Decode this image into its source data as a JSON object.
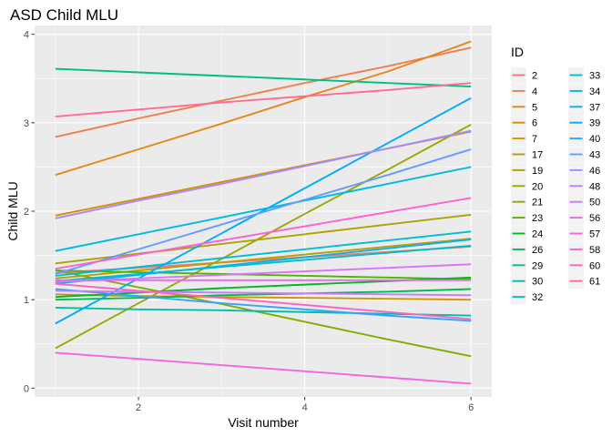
{
  "chart_data": {
    "type": "line",
    "title": "ASD Child MLU",
    "xlabel": "Visit number",
    "ylabel": "Child MLU",
    "xlim": [
      0.75,
      6.25
    ],
    "ylim": [
      -0.1,
      4.1
    ],
    "x_ticks": [
      2,
      4,
      6
    ],
    "y_ticks": [
      0,
      1,
      2,
      3,
      4
    ],
    "grid": true,
    "legend_title": "ID",
    "legend_placement": "right",
    "x": [
      1,
      2,
      3,
      4,
      5,
      6
    ],
    "series": [
      {
        "name": "2",
        "color": "#F8766D",
        "values": [
          1.3,
          1.36,
          1.42,
          1.48,
          1.54,
          1.6
        ]
      },
      {
        "name": "4",
        "color": "#F07F4F",
        "values": [
          2.84,
          3.05,
          3.25,
          3.45,
          3.64,
          3.85
        ]
      },
      {
        "name": "5",
        "color": "#E7861B",
        "values": [
          2.41,
          2.7,
          2.99,
          3.29,
          3.58,
          3.92
        ]
      },
      {
        "name": "6",
        "color": "#DB8E00",
        "values": [
          1.95,
          2.14,
          2.33,
          2.52,
          2.71,
          2.9
        ]
      },
      {
        "name": "7",
        "color": "#CE9700",
        "values": [
          1.06,
          1.04,
          1.03,
          1.02,
          1.01,
          1.0
        ]
      },
      {
        "name": "17",
        "color": "#BE9C00",
        "values": [
          1.24,
          1.33,
          1.42,
          1.51,
          1.6,
          1.69
        ]
      },
      {
        "name": "19",
        "color": "#AEA200",
        "values": [
          1.41,
          1.52,
          1.63,
          1.74,
          1.85,
          1.96
        ]
      },
      {
        "name": "20",
        "color": "#9DA700",
        "values": [
          0.45,
          0.96,
          1.46,
          1.97,
          2.47,
          2.98
        ]
      },
      {
        "name": "21",
        "color": "#7FAD00",
        "values": [
          1.33,
          1.14,
          0.95,
          0.75,
          0.55,
          0.36
        ]
      },
      {
        "name": "23",
        "color": "#4FB300",
        "values": [
          1.33,
          1.31,
          1.29,
          1.27,
          1.25,
          1.23
        ]
      },
      {
        "name": "24",
        "color": "#00B81F",
        "values": [
          1.03,
          1.08,
          1.13,
          1.17,
          1.21,
          1.25
        ]
      },
      {
        "name": "26",
        "color": "#00BB4E",
        "values": [
          1.0,
          1.02,
          1.05,
          1.07,
          1.09,
          1.12
        ]
      },
      {
        "name": "29",
        "color": "#00BD86",
        "values": [
          3.61,
          3.57,
          3.53,
          3.49,
          3.45,
          3.41
        ]
      },
      {
        "name": "30",
        "color": "#00BFAA",
        "values": [
          0.91,
          0.89,
          0.88,
          0.86,
          0.84,
          0.82
        ]
      },
      {
        "name": "32",
        "color": "#00BFC4",
        "values": [
          1.21,
          1.29,
          1.37,
          1.45,
          1.53,
          1.61
        ]
      },
      {
        "name": "33",
        "color": "#00BDD4",
        "values": [
          1.27,
          1.37,
          1.47,
          1.57,
          1.67,
          1.77
        ]
      },
      {
        "name": "34",
        "color": "#00B9E3",
        "values": [
          1.55,
          1.74,
          1.93,
          2.12,
          2.31,
          2.5
        ]
      },
      {
        "name": "37",
        "color": "#00B4F0",
        "values": [
          1.18,
          1.28,
          1.38,
          1.48,
          1.58,
          1.68
        ]
      },
      {
        "name": "39",
        "color": "#00ABFD",
        "values": [
          0.73,
          1.24,
          1.75,
          2.26,
          2.77,
          3.28
        ]
      },
      {
        "name": "40",
        "color": "#35A2FF",
        "values": [
          1.12,
          1.04,
          0.96,
          0.89,
          0.82,
          0.76
        ]
      },
      {
        "name": "43",
        "color": "#619CFF",
        "values": [
          1.29,
          1.57,
          1.85,
          2.13,
          2.41,
          2.7
        ]
      },
      {
        "name": "46",
        "color": "#A58AFF",
        "values": [
          1.92,
          2.12,
          2.31,
          2.51,
          2.71,
          2.91
        ]
      },
      {
        "name": "48",
        "color": "#C77CFF",
        "values": [
          1.1,
          1.09,
          1.08,
          1.07,
          1.06,
          1.05
        ]
      },
      {
        "name": "50",
        "color": "#DC71FA",
        "values": [
          1.2,
          1.24,
          1.28,
          1.32,
          1.36,
          1.4
        ]
      },
      {
        "name": "56",
        "color": "#EB68EE",
        "values": [
          1.22,
          1.22,
          1.22,
          1.22,
          1.22,
          1.22
        ]
      },
      {
        "name": "57",
        "color": "#F564E3",
        "values": [
          0.4,
          0.33,
          0.26,
          0.19,
          0.12,
          0.05
        ]
      },
      {
        "name": "58",
        "color": "#FC61D5",
        "values": [
          1.35,
          1.51,
          1.67,
          1.83,
          1.99,
          2.15
        ]
      },
      {
        "name": "60",
        "color": "#FF62BC",
        "values": [
          1.18,
          1.1,
          1.02,
          0.94,
          0.86,
          0.78
        ]
      },
      {
        "name": "61",
        "color": "#FF6C91",
        "values": [
          3.07,
          3.15,
          3.23,
          3.3,
          3.37,
          3.45
        ]
      }
    ]
  }
}
